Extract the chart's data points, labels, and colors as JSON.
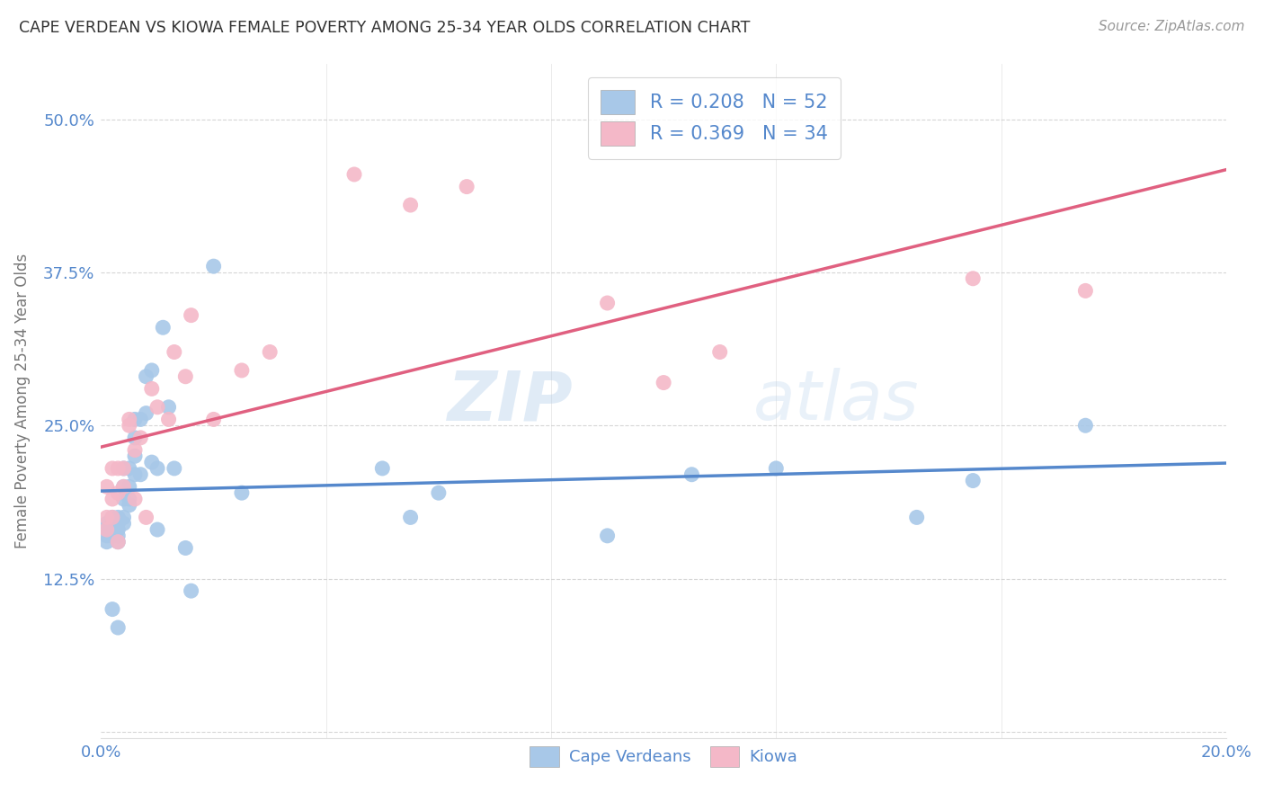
{
  "title": "CAPE VERDEAN VS KIOWA FEMALE POVERTY AMONG 25-34 YEAR OLDS CORRELATION CHART",
  "source": "Source: ZipAtlas.com",
  "ylabel": "Female Poverty Among 25-34 Year Olds",
  "xlim": [
    0.0,
    0.2
  ],
  "ylim": [
    -0.005,
    0.545
  ],
  "yticks": [
    0.0,
    0.125,
    0.25,
    0.375,
    0.5
  ],
  "ytick_labels": [
    "",
    "12.5%",
    "25.0%",
    "37.5%",
    "50.0%"
  ],
  "xticks": [
    0.0,
    0.04,
    0.08,
    0.12,
    0.16,
    0.2
  ],
  "xtick_labels": [
    "0.0%",
    "",
    "",
    "",
    "",
    "20.0%"
  ],
  "blue_color": "#a8c8e8",
  "pink_color": "#f4b8c8",
  "blue_line_color": "#5588cc",
  "pink_line_color": "#e06080",
  "text_color": "#5588cc",
  "watermark": "ZIPatlas",
  "cv_R": "0.208",
  "cv_N": "52",
  "kiowa_R": "0.369",
  "kiowa_N": "34",
  "cape_verdean_x": [
    0.001,
    0.001,
    0.001,
    0.001,
    0.002,
    0.002,
    0.002,
    0.002,
    0.002,
    0.003,
    0.003,
    0.003,
    0.003,
    0.003,
    0.003,
    0.004,
    0.004,
    0.004,
    0.004,
    0.004,
    0.005,
    0.005,
    0.005,
    0.005,
    0.006,
    0.006,
    0.006,
    0.006,
    0.007,
    0.007,
    0.008,
    0.008,
    0.009,
    0.009,
    0.01,
    0.01,
    0.011,
    0.012,
    0.013,
    0.015,
    0.016,
    0.02,
    0.025,
    0.05,
    0.055,
    0.06,
    0.09,
    0.105,
    0.12,
    0.145,
    0.155,
    0.175
  ],
  "cape_verdean_y": [
    0.17,
    0.165,
    0.16,
    0.155,
    0.175,
    0.17,
    0.165,
    0.16,
    0.1,
    0.175,
    0.17,
    0.165,
    0.16,
    0.155,
    0.085,
    0.215,
    0.2,
    0.19,
    0.175,
    0.17,
    0.215,
    0.2,
    0.19,
    0.185,
    0.255,
    0.24,
    0.225,
    0.21,
    0.255,
    0.21,
    0.29,
    0.26,
    0.295,
    0.22,
    0.215,
    0.165,
    0.33,
    0.265,
    0.215,
    0.15,
    0.115,
    0.38,
    0.195,
    0.215,
    0.175,
    0.195,
    0.16,
    0.21,
    0.215,
    0.175,
    0.205,
    0.25
  ],
  "kiowa_x": [
    0.001,
    0.001,
    0.001,
    0.002,
    0.002,
    0.002,
    0.003,
    0.003,
    0.003,
    0.004,
    0.004,
    0.005,
    0.005,
    0.006,
    0.006,
    0.007,
    0.008,
    0.009,
    0.01,
    0.012,
    0.013,
    0.015,
    0.016,
    0.02,
    0.025,
    0.03,
    0.045,
    0.055,
    0.065,
    0.09,
    0.1,
    0.11,
    0.155,
    0.175
  ],
  "kiowa_y": [
    0.165,
    0.175,
    0.2,
    0.175,
    0.19,
    0.215,
    0.195,
    0.215,
    0.155,
    0.2,
    0.215,
    0.25,
    0.255,
    0.19,
    0.23,
    0.24,
    0.175,
    0.28,
    0.265,
    0.255,
    0.31,
    0.29,
    0.34,
    0.255,
    0.295,
    0.31,
    0.455,
    0.43,
    0.445,
    0.35,
    0.285,
    0.31,
    0.37,
    0.36
  ],
  "background_color": "#ffffff",
  "grid_color": "#cccccc"
}
